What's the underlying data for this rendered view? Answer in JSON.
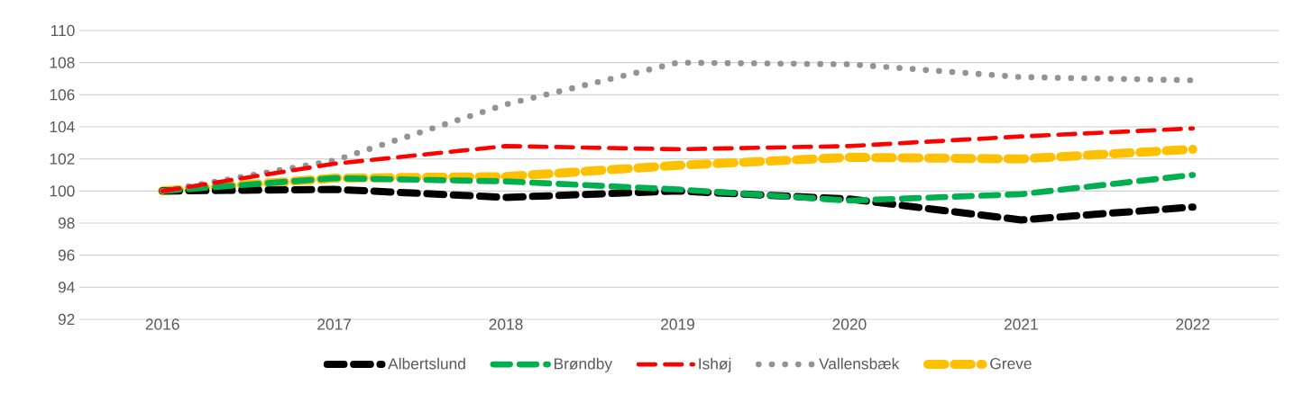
{
  "chart_data": {
    "type": "line",
    "categories": [
      "2016",
      "2017",
      "2018",
      "2019",
      "2020",
      "2021",
      "2022"
    ],
    "series": [
      {
        "name": "Albertslund",
        "color": "#000000",
        "line_style": "dashed",
        "values": [
          100,
          100.1,
          99.6,
          100.0,
          99.5,
          98.2,
          99.0
        ]
      },
      {
        "name": "Brøndby",
        "color": "#00b050",
        "line_style": "dashed",
        "values": [
          100,
          100.8,
          100.6,
          100.1,
          99.4,
          99.8,
          101.0
        ]
      },
      {
        "name": "Ishøj",
        "color": "#ff0000",
        "line_style": "dashed",
        "values": [
          100,
          101.7,
          102.8,
          102.6,
          102.8,
          103.4,
          103.9
        ]
      },
      {
        "name": "Vallensbæk",
        "color": "#939393",
        "line_style": "dotted",
        "values": [
          100,
          101.9,
          105.4,
          108.0,
          107.9,
          107.1,
          106.9
        ]
      },
      {
        "name": "Greve",
        "color": "#ffc000",
        "line_style": "dashed",
        "values": [
          100,
          100.8,
          100.9,
          101.6,
          102.1,
          102.0,
          102.6
        ]
      }
    ],
    "ylim": [
      92,
      110
    ],
    "yticks": [
      92,
      94,
      96,
      98,
      100,
      102,
      104,
      106,
      108,
      110
    ],
    "grid": "y",
    "legend": "bottom",
    "marker": "none"
  }
}
